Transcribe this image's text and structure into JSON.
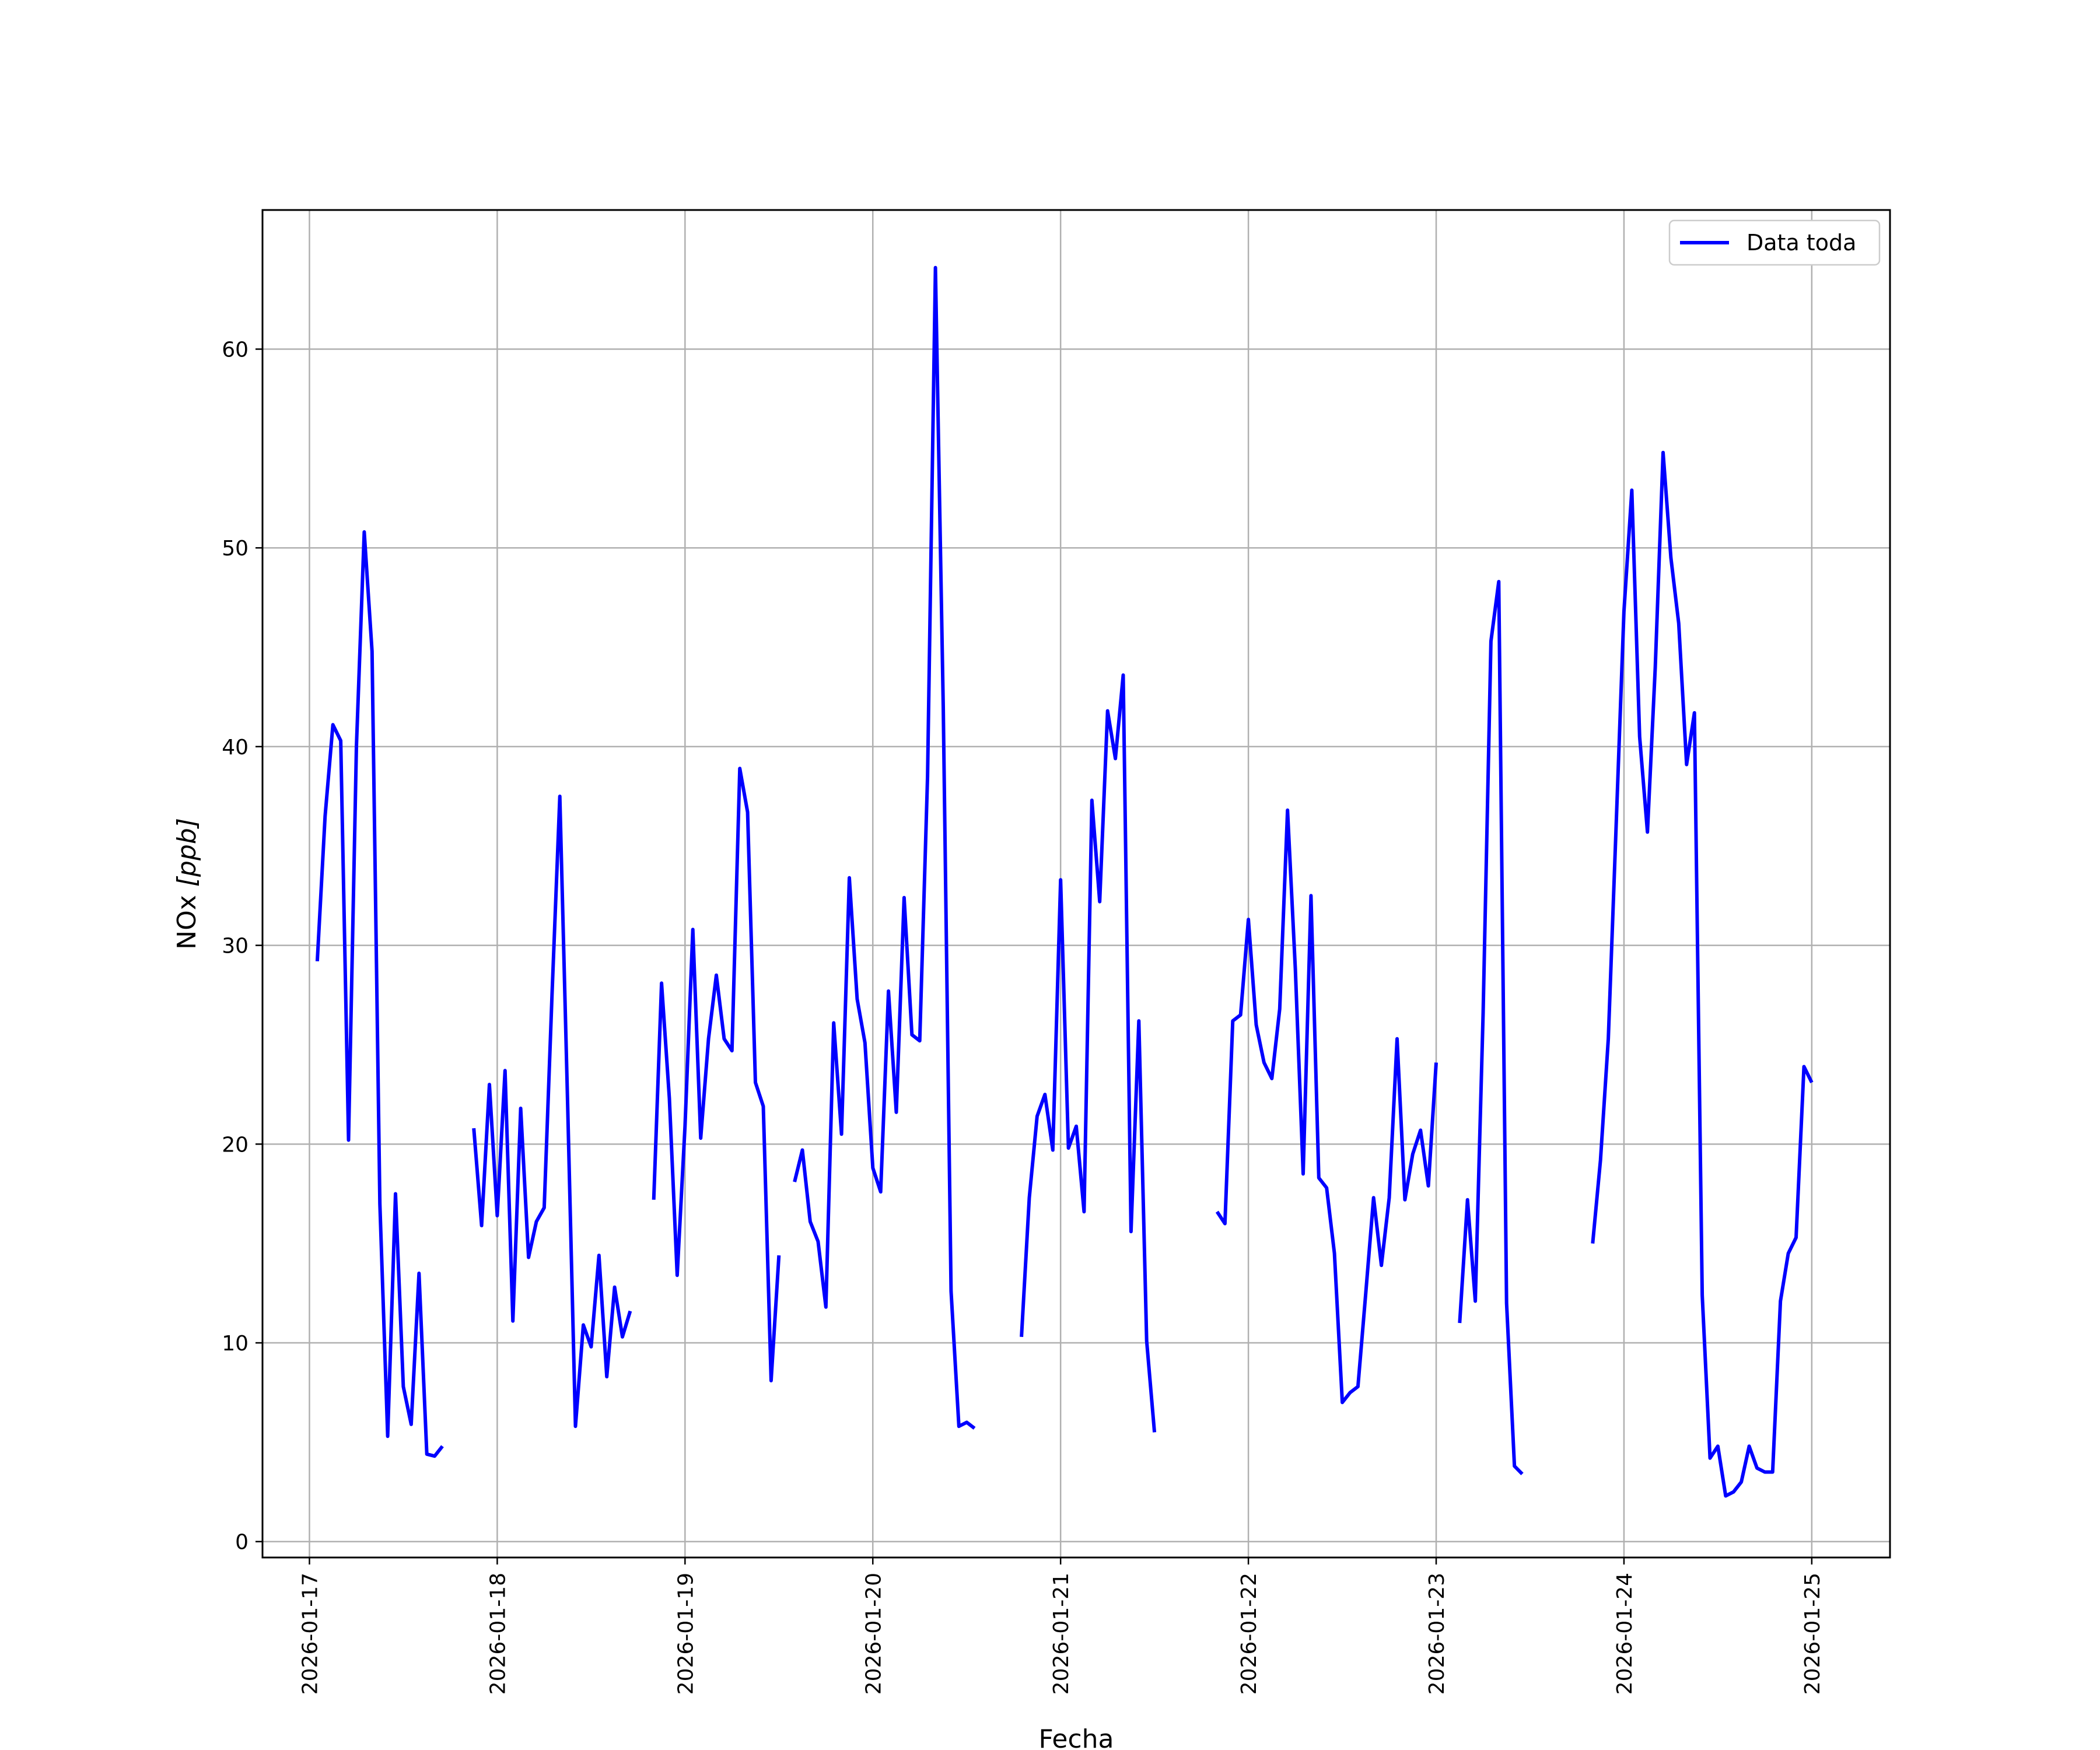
{
  "chart_data": {
    "type": "line",
    "xlabel": "Fecha",
    "ylabel": "NOx [ppb]",
    "ylabel_parts": {
      "main": "NOx ",
      "unit": "[ppb]"
    },
    "xlim": [
      "2026-01-16 18:00",
      "2026-01-25 10:00"
    ],
    "ylim": [
      -0.8,
      67
    ],
    "x_ticks": [
      "2026-01-17",
      "2026-01-18",
      "2026-01-19",
      "2026-01-20",
      "2026-01-21",
      "2026-01-22",
      "2026-01-23",
      "2026-01-24",
      "2026-01-25"
    ],
    "y_ticks": [
      0,
      10,
      20,
      30,
      40,
      50,
      60
    ],
    "grid": true,
    "legend_position": "top-right",
    "colors": {
      "series": "#0000ff",
      "grid": "#b0b0b0",
      "frame": "#000000"
    },
    "series": [
      {
        "name": "Data toda",
        "segments": [
          [
            [
              "2026-01-17 01:00",
              29.2
            ],
            [
              "2026-01-17 02:00",
              36.5
            ],
            [
              "2026-01-17 03:00",
              41.1
            ],
            [
              "2026-01-17 04:00",
              40.3
            ],
            [
              "2026-01-17 05:00",
              20.2
            ],
            [
              "2026-01-17 06:00",
              40.0
            ],
            [
              "2026-01-17 07:00",
              50.8
            ],
            [
              "2026-01-17 08:00",
              44.8
            ],
            [
              "2026-01-17 09:00",
              17.0
            ],
            [
              "2026-01-17 10:00",
              5.3
            ],
            [
              "2026-01-17 11:00",
              17.5
            ],
            [
              "2026-01-17 12:00",
              7.8
            ],
            [
              "2026-01-17 13:00",
              5.9
            ],
            [
              "2026-01-17 14:00",
              13.5
            ],
            [
              "2026-01-17 15:00",
              4.4
            ],
            [
              "2026-01-17 16:00",
              4.3
            ],
            [
              "2026-01-17 17:00",
              4.8
            ]
          ],
          [
            [
              "2026-01-17 21:00",
              20.8
            ],
            [
              "2026-01-17 22:00",
              15.9
            ],
            [
              "2026-01-17 23:00",
              23.0
            ],
            [
              "2026-01-18 00:00",
              16.4
            ],
            [
              "2026-01-18 01:00",
              23.7
            ],
            [
              "2026-01-18 02:00",
              11.1
            ],
            [
              "2026-01-18 03:00",
              21.8
            ],
            [
              "2026-01-18 04:00",
              14.3
            ],
            [
              "2026-01-18 05:00",
              16.1
            ],
            [
              "2026-01-18 06:00",
              16.8
            ],
            [
              "2026-01-18 07:00",
              27.5
            ],
            [
              "2026-01-18 08:00",
              37.5
            ],
            [
              "2026-01-18 09:00",
              22.0
            ],
            [
              "2026-01-18 10:00",
              5.8
            ],
            [
              "2026-01-18 11:00",
              10.9
            ],
            [
              "2026-01-18 12:00",
              9.8
            ],
            [
              "2026-01-18 13:00",
              14.4
            ],
            [
              "2026-01-18 14:00",
              8.3
            ],
            [
              "2026-01-18 15:00",
              12.8
            ],
            [
              "2026-01-18 16:00",
              10.3
            ],
            [
              "2026-01-18 17:00",
              11.6
            ]
          ],
          [
            [
              "2026-01-18 20:00",
              17.2
            ],
            [
              "2026-01-18 21:00",
              28.1
            ],
            [
              "2026-01-18 22:00",
              22.3
            ],
            [
              "2026-01-18 23:00",
              13.4
            ],
            [
              "2026-01-19 00:00",
              20.9
            ],
            [
              "2026-01-19 01:00",
              30.8
            ],
            [
              "2026-01-19 02:00",
              20.3
            ],
            [
              "2026-01-19 03:00",
              25.3
            ],
            [
              "2026-01-19 04:00",
              28.5
            ],
            [
              "2026-01-19 05:00",
              25.3
            ],
            [
              "2026-01-19 06:00",
              24.7
            ],
            [
              "2026-01-19 07:00",
              38.9
            ],
            [
              "2026-01-19 08:00",
              36.7
            ],
            [
              "2026-01-19 09:00",
              23.1
            ],
            [
              "2026-01-19 10:00",
              21.9
            ],
            [
              "2026-01-19 11:00",
              8.1
            ],
            [
              "2026-01-19 12:00",
              14.4
            ]
          ],
          [
            [
              "2026-01-19 14:00",
              18.1
            ],
            [
              "2026-01-19 15:00",
              19.7
            ],
            [
              "2026-01-19 16:00",
              16.1
            ],
            [
              "2026-01-19 17:00",
              15.1
            ],
            [
              "2026-01-19 18:00",
              11.8
            ],
            [
              "2026-01-19 19:00",
              26.1
            ],
            [
              "2026-01-19 20:00",
              20.5
            ],
            [
              "2026-01-19 21:00",
              33.4
            ],
            [
              "2026-01-19 22:00",
              27.3
            ],
            [
              "2026-01-19 23:00",
              25.1
            ],
            [
              "2026-01-20 00:00",
              18.8
            ],
            [
              "2026-01-20 01:00",
              17.6
            ],
            [
              "2026-01-20 02:00",
              27.7
            ],
            [
              "2026-01-20 03:00",
              21.6
            ],
            [
              "2026-01-20 04:00",
              32.4
            ],
            [
              "2026-01-20 05:00",
              25.5
            ],
            [
              "2026-01-20 06:00",
              25.2
            ],
            [
              "2026-01-20 07:00",
              38.5
            ],
            [
              "2026-01-20 08:00",
              64.1
            ],
            [
              "2026-01-20 09:00",
              42.0
            ],
            [
              "2026-01-20 10:00",
              12.6
            ],
            [
              "2026-01-20 11:00",
              5.8
            ],
            [
              "2026-01-20 12:00",
              6.0
            ],
            [
              "2026-01-20 13:00",
              5.7
            ]
          ],
          [
            [
              "2026-01-20 19:00",
              10.3
            ],
            [
              "2026-01-20 20:00",
              17.3
            ],
            [
              "2026-01-20 21:00",
              21.4
            ],
            [
              "2026-01-20 22:00",
              22.5
            ],
            [
              "2026-01-20 23:00",
              19.7
            ],
            [
              "2026-01-21 00:00",
              33.3
            ],
            [
              "2026-01-21 01:00",
              19.8
            ],
            [
              "2026-01-21 02:00",
              20.9
            ],
            [
              "2026-01-21 03:00",
              16.6
            ],
            [
              "2026-01-21 04:00",
              37.3
            ],
            [
              "2026-01-21 05:00",
              32.2
            ],
            [
              "2026-01-21 06:00",
              41.8
            ],
            [
              "2026-01-21 07:00",
              39.4
            ],
            [
              "2026-01-21 08:00",
              43.6
            ],
            [
              "2026-01-21 09:00",
              15.6
            ],
            [
              "2026-01-21 10:00",
              26.2
            ],
            [
              "2026-01-21 11:00",
              10.1
            ],
            [
              "2026-01-21 12:00",
              5.5
            ]
          ],
          [
            [
              "2026-01-21 20:00",
              16.6
            ],
            [
              "2026-01-21 21:00",
              16.0
            ],
            [
              "2026-01-21 22:00",
              26.2
            ],
            [
              "2026-01-21 23:00",
              26.5
            ],
            [
              "2026-01-22 00:00",
              31.3
            ],
            [
              "2026-01-22 01:00",
              26.0
            ],
            [
              "2026-01-22 02:00",
              24.1
            ],
            [
              "2026-01-22 03:00",
              23.3
            ],
            [
              "2026-01-22 04:00",
              26.8
            ],
            [
              "2026-01-22 05:00",
              36.8
            ],
            [
              "2026-01-22 06:00",
              28.8
            ],
            [
              "2026-01-22 07:00",
              18.5
            ],
            [
              "2026-01-22 08:00",
              32.5
            ],
            [
              "2026-01-22 09:00",
              18.3
            ],
            [
              "2026-01-22 10:00",
              17.8
            ],
            [
              "2026-01-22 11:00",
              14.5
            ],
            [
              "2026-01-22 12:00",
              7.0
            ],
            [
              "2026-01-22 13:00",
              7.5
            ],
            [
              "2026-01-22 14:00",
              7.8
            ],
            [
              "2026-01-22 15:00",
              12.5
            ],
            [
              "2026-01-22 16:00",
              17.3
            ],
            [
              "2026-01-22 17:00",
              13.9
            ],
            [
              "2026-01-22 18:00",
              17.3
            ],
            [
              "2026-01-22 19:00",
              25.3
            ],
            [
              "2026-01-22 20:00",
              17.2
            ],
            [
              "2026-01-22 21:00",
              19.5
            ],
            [
              "2026-01-22 22:00",
              20.7
            ],
            [
              "2026-01-22 23:00",
              17.9
            ],
            [
              "2026-01-23 00:00",
              24.1
            ]
          ],
          [
            [
              "2026-01-23 03:00",
              11.0
            ],
            [
              "2026-01-23 04:00",
              17.2
            ],
            [
              "2026-01-23 05:00",
              12.1
            ],
            [
              "2026-01-23 06:00",
              26.6
            ],
            [
              "2026-01-23 07:00",
              45.3
            ],
            [
              "2026-01-23 08:00",
              48.3
            ],
            [
              "2026-01-23 09:00",
              12.0
            ],
            [
              "2026-01-23 10:00",
              3.8
            ],
            [
              "2026-01-23 11:00",
              3.4
            ]
          ],
          [
            [
              "2026-01-23 20:00",
              15.0
            ],
            [
              "2026-01-23 21:00",
              19.2
            ],
            [
              "2026-01-23 22:00",
              25.3
            ],
            [
              "2026-01-23 23:00",
              36.0
            ],
            [
              "2026-01-24 00:00",
              46.8
            ],
            [
              "2026-01-24 01:00",
              52.9
            ],
            [
              "2026-01-24 02:00",
              40.5
            ],
            [
              "2026-01-24 03:00",
              35.7
            ],
            [
              "2026-01-24 04:00",
              44.0
            ],
            [
              "2026-01-24 05:00",
              54.8
            ],
            [
              "2026-01-24 06:00",
              49.5
            ],
            [
              "2026-01-24 07:00",
              46.2
            ],
            [
              "2026-01-24 08:00",
              39.1
            ],
            [
              "2026-01-24 09:00",
              41.7
            ],
            [
              "2026-01-24 10:00",
              12.4
            ],
            [
              "2026-01-24 11:00",
              4.2
            ],
            [
              "2026-01-24 12:00",
              4.8
            ],
            [
              "2026-01-24 13:00",
              2.3
            ],
            [
              "2026-01-24 14:00",
              2.5
            ],
            [
              "2026-01-24 15:00",
              3.0
            ],
            [
              "2026-01-24 16:00",
              4.8
            ],
            [
              "2026-01-24 17:00",
              3.7
            ],
            [
              "2026-01-24 18:00",
              3.5
            ],
            [
              "2026-01-24 19:00",
              3.5
            ],
            [
              "2026-01-24 20:00",
              12.1
            ],
            [
              "2026-01-24 21:00",
              14.5
            ],
            [
              "2026-01-24 22:00",
              15.3
            ],
            [
              "2026-01-24 23:00",
              23.9
            ],
            [
              "2026-01-25 00:00",
              23.1
            ]
          ]
        ]
      }
    ]
  }
}
